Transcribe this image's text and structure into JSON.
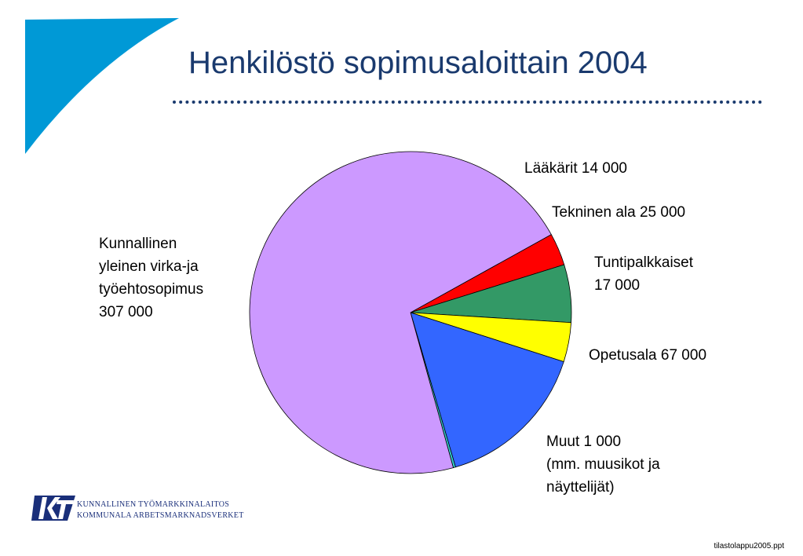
{
  "colors": {
    "title": "#1a3a6e",
    "accent": "#0099d6",
    "logo": "#1a2f7a"
  },
  "chart_data": {
    "type": "pie",
    "title": "Henkilöstö sopimusaloittain 2004",
    "slices": [
      {
        "label_lines": [
          "Lääkärit 14 000"
        ],
        "value": 14000,
        "color": "#ff0000"
      },
      {
        "label_lines": [
          "Tekninen ala 25 000"
        ],
        "value": 25000,
        "color": "#339966"
      },
      {
        "label_lines": [
          "Tuntipalkkaiset",
          "17 000"
        ],
        "value": 17000,
        "color": "#ffff00"
      },
      {
        "label_lines": [
          "Opetusala 67 000"
        ],
        "value": 67000,
        "color": "#3366ff"
      },
      {
        "label_lines": [
          "Muut  1 000",
          "(mm. muusikot ja",
          "näyttelijät)"
        ],
        "value": 1000,
        "color": "#33cccc"
      },
      {
        "label_lines": [
          "Kunnallinen",
          "yleinen virka-ja",
          "työehtosopimus",
          "307 000"
        ],
        "value": 307000,
        "color": "#cc99ff"
      }
    ]
  },
  "logo": {
    "line1": "KUNNALLINEN TYÖMARKKINALAITOS",
    "line2": "KOMMUNALA ARBETSMARKNADSVERKET"
  },
  "footer": {
    "file": "tilastolappu2005.ppt"
  }
}
